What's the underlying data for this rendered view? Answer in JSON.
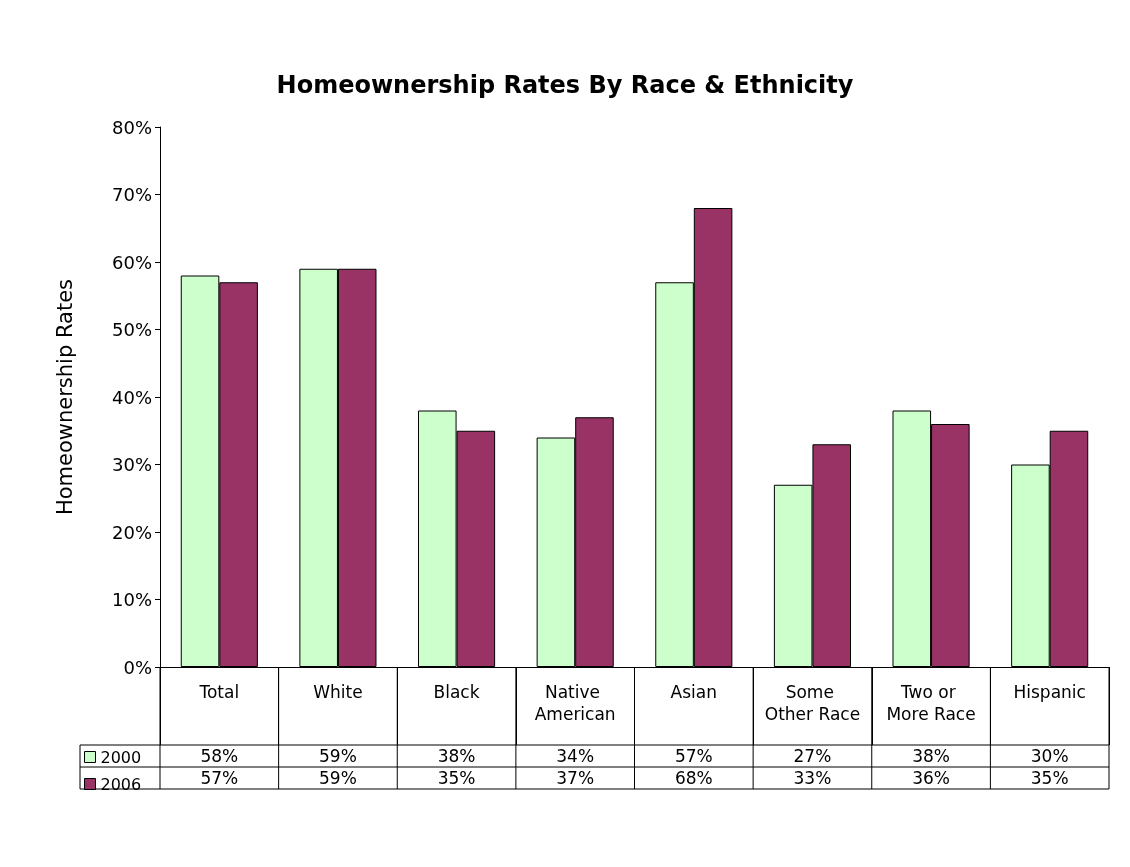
{
  "chart_data": {
    "type": "bar",
    "title": "Homeownership Rates By Race & Ethnicity",
    "ylabel": "Homeownership Rates",
    "categories": [
      "Total",
      "White",
      "Black",
      "Native American",
      "Asian",
      "Some Other Race",
      "Two or More Race",
      "Hispanic"
    ],
    "series": [
      {
        "name": "2000",
        "color": "#ccffcc",
        "values": [
          58,
          59,
          38,
          34,
          57,
          27,
          38,
          30
        ],
        "value_labels": [
          "58%",
          "59%",
          "38%",
          "34%",
          "57%",
          "27%",
          "38%",
          "30%"
        ]
      },
      {
        "name": "2006",
        "color": "#993366",
        "values": [
          57,
          59,
          35,
          37,
          68,
          33,
          36,
          35
        ],
        "value_labels": [
          "57%",
          "59%",
          "35%",
          "37%",
          "68%",
          "33%",
          "36%",
          "35%"
        ]
      }
    ],
    "ylim": [
      0,
      80
    ],
    "yticks": [
      {
        "value": 0,
        "label": "0%"
      },
      {
        "value": 10,
        "label": "10%"
      },
      {
        "value": 20,
        "label": "20%"
      },
      {
        "value": 30,
        "label": "30%"
      },
      {
        "value": 40,
        "label": "40%"
      },
      {
        "value": 50,
        "label": "50%"
      },
      {
        "value": 60,
        "label": "60%"
      },
      {
        "value": 70,
        "label": "70%"
      },
      {
        "value": 80,
        "label": "80%"
      }
    ],
    "grid": false,
    "legend": "bottom left"
  }
}
